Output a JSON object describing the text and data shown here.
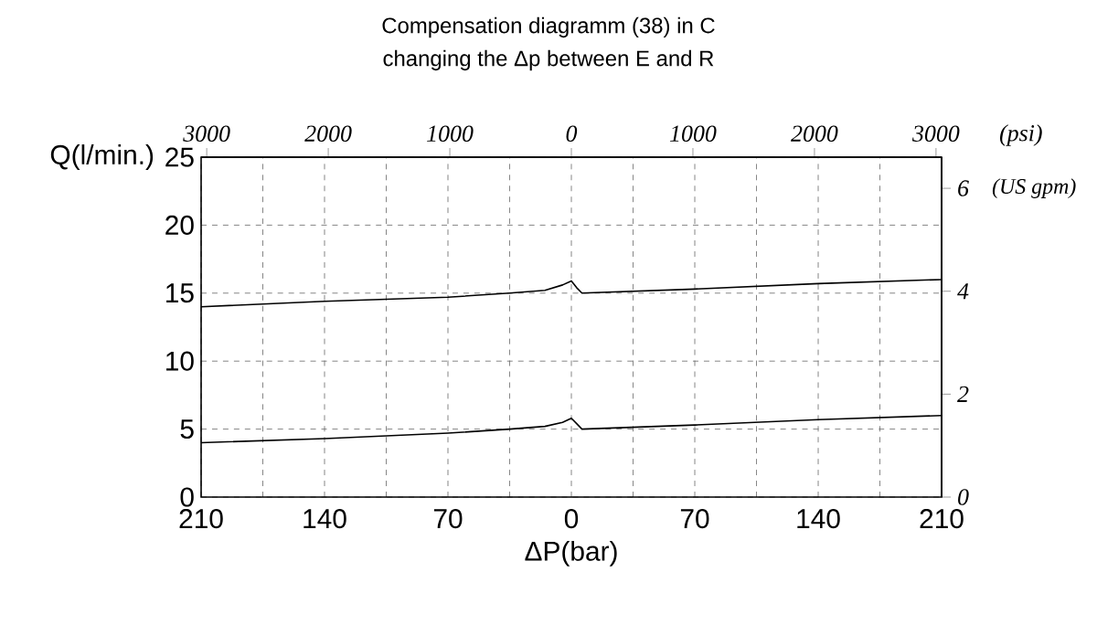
{
  "chart_data": {
    "type": "line",
    "title": "Compensation diagramm (38) in C",
    "subtitle": "changing the Δp between E and R",
    "xlabel": "ΔP(bar)",
    "ylabel": "Q(l/min.)",
    "x2label": "(psi)",
    "y2label": "(US gpm)",
    "x": [
      -210,
      -140,
      -70,
      -35,
      -15,
      -5,
      0,
      3,
      6,
      70,
      140,
      210
    ],
    "series": [
      {
        "color": "#000000",
        "values": [
          14.0,
          14.4,
          14.7,
          15.0,
          15.2,
          15.6,
          15.9,
          15.4,
          15.0,
          15.3,
          15.7,
          16.0
        ]
      },
      {
        "color": "#000000",
        "values": [
          4.0,
          4.3,
          4.7,
          5.0,
          5.2,
          5.5,
          5.8,
          5.4,
          5.0,
          5.3,
          5.7,
          6.0
        ]
      }
    ],
    "xlim": [
      -210,
      210
    ],
    "xticks": [
      {
        "value": -210,
        "label": "210"
      },
      {
        "value": -175,
        "label": null
      },
      {
        "value": -140,
        "label": "140"
      },
      {
        "value": -105,
        "label": null
      },
      {
        "value": -70,
        "label": "70"
      },
      {
        "value": -35,
        "label": null
      },
      0,
      {
        "value": 35,
        "label": null
      },
      70,
      {
        "value": 105,
        "label": null
      },
      140,
      {
        "value": 175,
        "label": null
      },
      210
    ],
    "ylim": [
      0,
      25
    ],
    "yticks": [
      0,
      5,
      10,
      15,
      20,
      25
    ],
    "x2lim": [
      -3046,
      3046
    ],
    "x2ticks": [
      {
        "value": -3000,
        "label": "3000"
      },
      {
        "value": -2000,
        "label": "2000"
      },
      {
        "value": -1000,
        "label": "1000"
      },
      0,
      1000,
      2000,
      3000
    ],
    "y2lim": [
      0,
      6.605
    ],
    "y2ticks": [
      0,
      2,
      4,
      6
    ],
    "grid": true,
    "line_style": "solid"
  }
}
